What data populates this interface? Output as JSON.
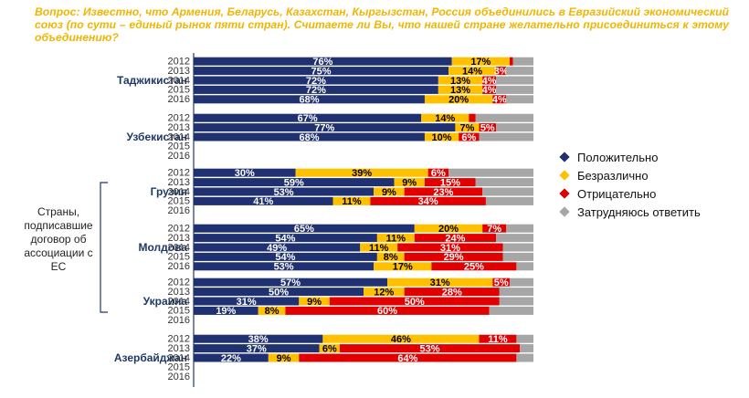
{
  "question": "Вопрос: Известно, что Армения, Беларусь, Казахстан, Кыргызстан, Россия объединились в Евразийский экономический союз (по сути – единый рынок пяти стран). Считаете ли Вы, что нашей стране желательно присоединиться к этому объединению?",
  "group_label": "Страны, подписавшие договор об ассоциации с ЕС",
  "legend": [
    {
      "label": "Положительно",
      "color": "#1f3171"
    },
    {
      "label": "Безразлично",
      "color": "#ffc000"
    },
    {
      "label": "Отрицательно",
      "color": "#e00000"
    },
    {
      "label": "Затрудняюсь ответить",
      "color": "#a6a6a6"
    }
  ],
  "chart_data": {
    "type": "bar",
    "orientation": "horizontal",
    "stacked": true,
    "xlim": [
      0,
      100
    ],
    "grid": false,
    "legend_position": "right",
    "series_names": [
      "Положительно",
      "Безразлично",
      "Отрицательно",
      "Затрудняюсь ответить"
    ],
    "countries": [
      {
        "name": "Таджикистан",
        "rows": [
          {
            "year": "2012",
            "values": [
              76,
              17,
              1,
              6
            ]
          },
          {
            "year": "2013",
            "values": [
              75,
              14,
              3,
              8
            ]
          },
          {
            "year": "2014",
            "values": [
              72,
              13,
              4,
              11
            ]
          },
          {
            "year": "2015",
            "values": [
              72,
              13,
              4,
              11
            ]
          },
          {
            "year": "2016",
            "values": [
              68,
              20,
              4,
              8
            ]
          }
        ]
      },
      {
        "name": "Узбекистан",
        "rows": [
          {
            "year": "2012",
            "values": [
              67,
              14,
              2,
              17
            ]
          },
          {
            "year": "2013",
            "values": [
              77,
              7,
              5,
              11
            ]
          },
          {
            "year": "2014",
            "values": [
              68,
              10,
              6,
              16
            ]
          },
          {
            "year": "2015",
            "values": null
          },
          {
            "year": "2016",
            "values": null
          }
        ]
      },
      {
        "name": "Грузия",
        "rows": [
          {
            "year": "2012",
            "values": [
              30,
              39,
              6,
              25
            ]
          },
          {
            "year": "2013",
            "values": [
              59,
              9,
              15,
              17
            ]
          },
          {
            "year": "2014",
            "values": [
              53,
              9,
              23,
              15
            ]
          },
          {
            "year": "2015",
            "values": [
              41,
              11,
              34,
              14
            ]
          },
          {
            "year": "2016",
            "values": null
          }
        ]
      },
      {
        "name": "Молдова",
        "rows": [
          {
            "year": "2012",
            "values": [
              65,
              20,
              7,
              8
            ]
          },
          {
            "year": "2013",
            "values": [
              54,
              11,
              24,
              11
            ]
          },
          {
            "year": "2014",
            "values": [
              49,
              11,
              31,
              9
            ]
          },
          {
            "year": "2015",
            "values": [
              54,
              8,
              29,
              9
            ]
          },
          {
            "year": "2016",
            "values": [
              53,
              17,
              25,
              5
            ]
          }
        ]
      },
      {
        "name": "Украина",
        "rows": [
          {
            "year": "2012",
            "values": [
              57,
              31,
              5,
              7
            ]
          },
          {
            "year": "2013",
            "values": [
              50,
              12,
              28,
              10
            ]
          },
          {
            "year": "2014",
            "values": [
              31,
              9,
              50,
              10
            ]
          },
          {
            "year": "2015",
            "values": [
              19,
              8,
              60,
              13
            ]
          },
          {
            "year": "2016",
            "values": null
          }
        ]
      },
      {
        "name": "Азербайджан",
        "rows": [
          {
            "year": "2012",
            "values": [
              38,
              46,
              11,
              5
            ]
          },
          {
            "year": "2013",
            "values": [
              37,
              6,
              53,
              4
            ]
          },
          {
            "year": "2014",
            "values": [
              22,
              9,
              64,
              5
            ]
          },
          {
            "year": "2015",
            "values": null
          },
          {
            "year": "2016",
            "values": null
          }
        ]
      }
    ]
  }
}
